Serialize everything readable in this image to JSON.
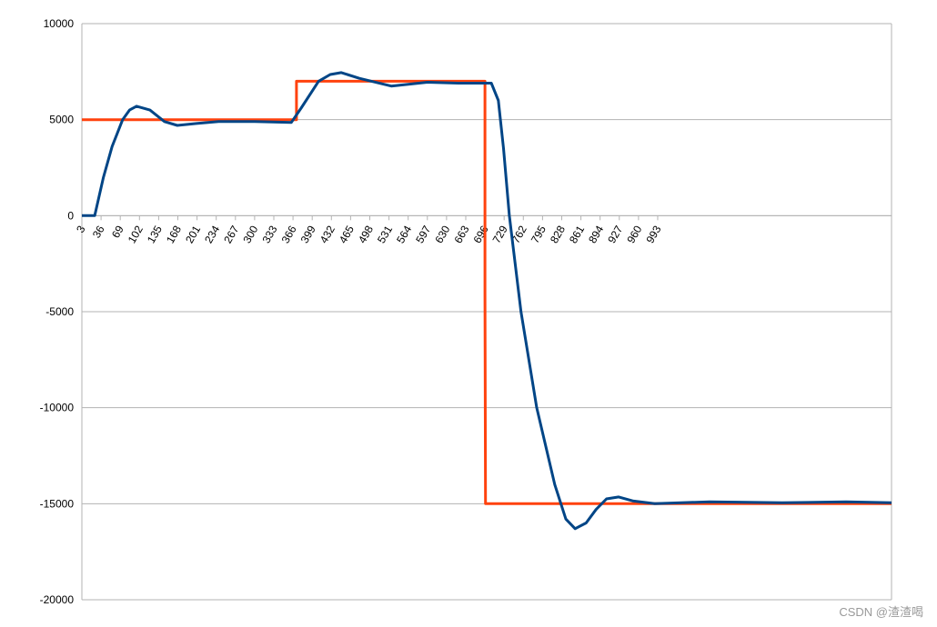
{
  "chart_data": {
    "type": "line",
    "xlim": [
      3,
      1395
    ],
    "xticks": [
      3,
      36,
      69,
      102,
      135,
      168,
      201,
      234,
      267,
      300,
      333,
      366,
      399,
      432,
      465,
      498,
      531,
      564,
      597,
      630,
      663,
      696,
      729,
      762,
      795,
      828,
      861,
      894,
      927,
      960,
      993
    ],
    "ylim": [
      -20000,
      10000
    ],
    "yticks": [
      -20000,
      -15000,
      -10000,
      -5000,
      0,
      5000,
      10000
    ],
    "grid": true,
    "series": [
      {
        "color": "#ff420e",
        "x": [
          3,
          372,
          372,
          696,
          696,
          697,
          1395
        ],
        "values": [
          5000,
          5000,
          7000,
          7000,
          -4000,
          -15000,
          -15000
        ]
      },
      {
        "color": "#004586",
        "x": [
          3,
          25,
          40,
          55,
          73,
          85,
          97,
          120,
          145,
          167,
          200,
          238,
          300,
          363,
          380,
          410,
          430,
          449,
          480,
          535,
          597,
          650,
          691,
          707,
          719,
          728,
          738,
          758,
          785,
          816,
          835,
          851,
          870,
          887,
          905,
          926,
          950,
          988,
          1082,
          1207,
          1317,
          1395
        ],
        "values": [
          0,
          0,
          2000,
          3600,
          5000,
          5500,
          5700,
          5500,
          4900,
          4700,
          4800,
          4900,
          4900,
          4850,
          5600,
          7000,
          7350,
          7450,
          7150,
          6750,
          6950,
          6900,
          6900,
          6900,
          6000,
          3500,
          0,
          -5000,
          -10000,
          -14000,
          -15800,
          -16300,
          -16000,
          -15300,
          -14750,
          -14650,
          -14850,
          -15000,
          -14900,
          -14950,
          -14900,
          -14950
        ]
      }
    ],
    "watermark": "CSDN @渣渣喝"
  }
}
